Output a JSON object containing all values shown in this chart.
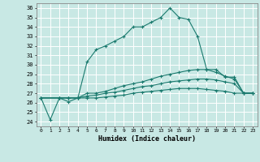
{
  "xlabel": "Humidex (Indice chaleur)",
  "xlim": [
    -0.5,
    23.5
  ],
  "ylim": [
    23.5,
    36.5
  ],
  "yticks": [
    24,
    25,
    26,
    27,
    28,
    29,
    30,
    31,
    32,
    33,
    34,
    35,
    36
  ],
  "xticks": [
    0,
    1,
    2,
    3,
    4,
    5,
    6,
    7,
    8,
    9,
    10,
    11,
    12,
    13,
    14,
    15,
    16,
    17,
    18,
    19,
    20,
    21,
    22,
    23
  ],
  "bg_color": "#c8e8e4",
  "line_color": "#1a7a6e",
  "grid_color": "#ffffff",
  "lines": [
    {
      "x": [
        0,
        1,
        2,
        3,
        4,
        5,
        6,
        7,
        8,
        9,
        10,
        11,
        12,
        13,
        14,
        15,
        16,
        17,
        18,
        19,
        20,
        21,
        22,
        23
      ],
      "y": [
        26.5,
        24.2,
        26.5,
        26.1,
        26.5,
        30.3,
        31.6,
        32.0,
        32.5,
        33.0,
        34.0,
        34.0,
        34.5,
        35.0,
        36.0,
        35.0,
        34.8,
        33.0,
        29.5,
        29.5,
        28.7,
        28.7,
        27.0,
        27.0
      ]
    },
    {
      "x": [
        0,
        2,
        3,
        4,
        5,
        6,
        7,
        8,
        9,
        10,
        11,
        12,
        13,
        14,
        15,
        16,
        17,
        18,
        19,
        20,
        21,
        22,
        23
      ],
      "y": [
        26.5,
        26.5,
        26.5,
        26.5,
        27.0,
        27.0,
        27.2,
        27.5,
        27.8,
        28.0,
        28.2,
        28.5,
        28.8,
        29.0,
        29.2,
        29.4,
        29.5,
        29.5,
        29.2,
        28.8,
        28.5,
        27.0,
        27.0
      ]
    },
    {
      "x": [
        0,
        2,
        3,
        4,
        5,
        6,
        7,
        8,
        9,
        10,
        11,
        12,
        13,
        14,
        15,
        16,
        17,
        18,
        19,
        20,
        21,
        22,
        23
      ],
      "y": [
        26.5,
        26.5,
        26.5,
        26.5,
        26.7,
        26.8,
        27.0,
        27.1,
        27.3,
        27.5,
        27.7,
        27.8,
        28.0,
        28.2,
        28.3,
        28.4,
        28.5,
        28.5,
        28.4,
        28.2,
        28.0,
        27.0,
        27.0
      ]
    },
    {
      "x": [
        0,
        2,
        3,
        4,
        5,
        6,
        7,
        8,
        9,
        10,
        11,
        12,
        13,
        14,
        15,
        16,
        17,
        18,
        19,
        20,
        21,
        22,
        23
      ],
      "y": [
        26.5,
        26.5,
        26.5,
        26.5,
        26.5,
        26.5,
        26.6,
        26.7,
        26.8,
        27.0,
        27.1,
        27.2,
        27.3,
        27.4,
        27.5,
        27.5,
        27.5,
        27.4,
        27.3,
        27.2,
        27.0,
        27.0,
        27.0
      ]
    }
  ]
}
